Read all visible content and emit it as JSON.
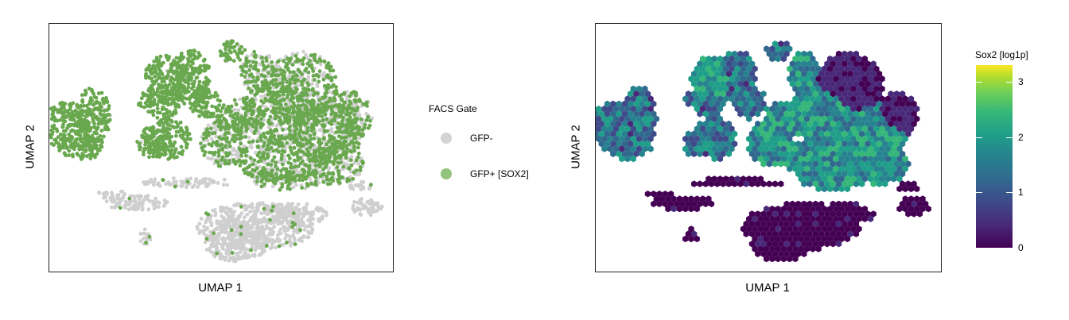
{
  "chart_data": [
    {
      "type": "scatter",
      "title": "",
      "xlabel": "UMAP 1",
      "ylabel": "UMAP 2",
      "legend": {
        "title": "FACS Gate",
        "placement": "right",
        "entries": [
          {
            "label": "GFP-",
            "color": "#d3d3d3"
          },
          {
            "label": "GFP+ [SOX2]",
            "color": "#93c47d"
          }
        ]
      },
      "series": [
        {
          "name": "GFP-",
          "color": "#cfcfcf"
        },
        {
          "name": "GFP+ [SOX2]",
          "color": "#6aa84f"
        }
      ],
      "grid": false
    },
    {
      "type": "heatmap",
      "title": "",
      "xlabel": "UMAP 1",
      "ylabel": "UMAP 2",
      "colorbar": {
        "title": "Sox2 [log1p]",
        "colormap": "viridis",
        "range": [
          0,
          3.3
        ],
        "ticks": [
          0,
          1,
          2,
          3
        ],
        "tick_labels": [
          "0",
          "1",
          "2",
          "3"
        ]
      },
      "grid": false
    }
  ]
}
